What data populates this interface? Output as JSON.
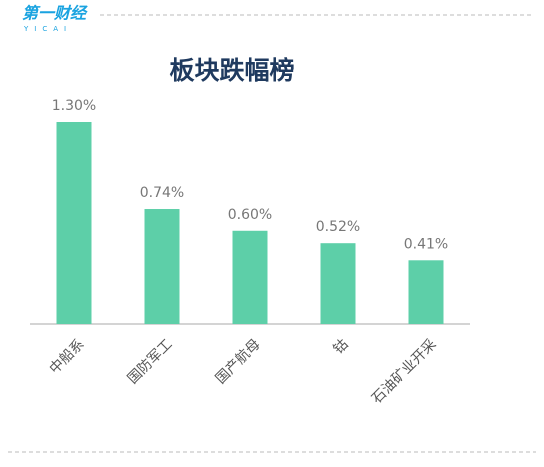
{
  "header": {
    "logo": "第一财经",
    "logo_sub": "YICAI"
  },
  "chart_data": {
    "type": "bar",
    "title": "板块跌幅榜",
    "categories": [
      "中船系",
      "国防军工",
      "国产航母",
      "钴",
      "石油矿业开采"
    ],
    "values": [
      1.3,
      0.74,
      0.6,
      0.52,
      0.41
    ],
    "value_labels": [
      "1.30%",
      "0.74%",
      "0.60%",
      "0.52%",
      "0.41%"
    ],
    "color": "#5dcfa8"
  }
}
